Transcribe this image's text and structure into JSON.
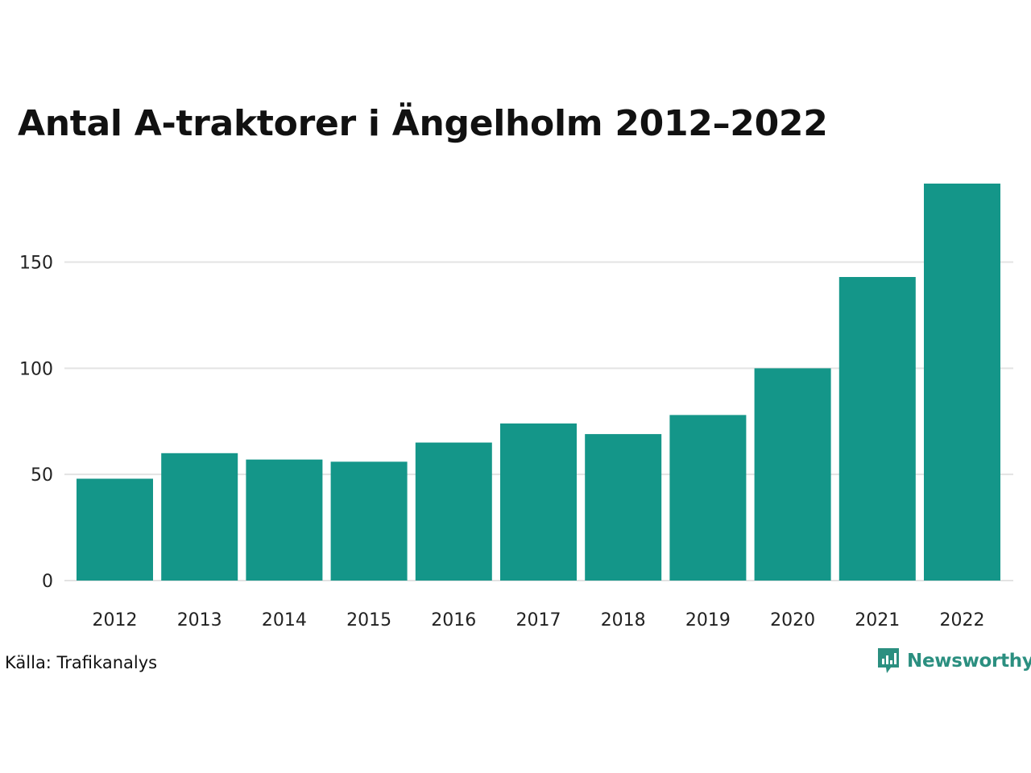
{
  "title": "Antal A-traktorer i Ängelholm 2012–2022",
  "source": "Källa: Trafikanalys",
  "brand": {
    "name": "Newsworthy",
    "icon": "newsworthy-logo-icon",
    "color": "#2b8f80"
  },
  "colors": {
    "bar": "#149689",
    "grid": "#e3e3e3"
  },
  "chart_data": {
    "type": "bar",
    "title": "Antal A-traktorer i Ängelholm 2012–2022",
    "categories": [
      "2012",
      "2013",
      "2014",
      "2015",
      "2016",
      "2017",
      "2018",
      "2019",
      "2020",
      "2021",
      "2022"
    ],
    "values": [
      48,
      60,
      57,
      56,
      65,
      74,
      69,
      78,
      100,
      143,
      187
    ],
    "yticks": [
      0,
      50,
      100,
      150
    ],
    "ylim": [
      0,
      187
    ],
    "grid": true,
    "legend": "none",
    "xlabel": "",
    "ylabel": ""
  }
}
